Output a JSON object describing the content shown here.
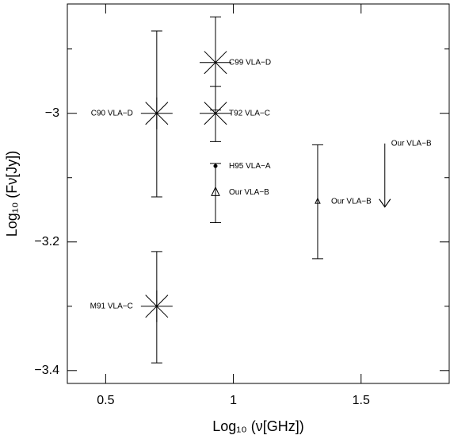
{
  "chart_data": {
    "type": "scatter",
    "xlabel": "Log₁₀ (ν[GHz])",
    "ylabel": "Log₁₀ (Fν[Jy])",
    "xlim": [
      0.35,
      1.845
    ],
    "ylim": [
      -3.42,
      -2.83
    ],
    "xticks": [
      0.5,
      1,
      1.5
    ],
    "yticks": [
      {
        "value": -3,
        "label": "−3"
      },
      {
        "value": -3.2,
        "label": "−3.2"
      },
      {
        "value": -3.4,
        "label": "−3.4"
      }
    ],
    "yminorticks": [
      -2.9,
      -3.1,
      -3.3
    ],
    "color": "#000000",
    "points": [
      {
        "label": "C90 VLA−D",
        "x": 0.7,
        "y": -3.0,
        "err_minus": 0.13,
        "err_plus": 0.128,
        "marker": "asterisk",
        "label_side": "left"
      },
      {
        "label": "M91 VLA−C",
        "x": 0.7,
        "y": -3.3,
        "err_minus": 0.088,
        "err_plus": 0.085,
        "marker": "asterisk",
        "label_side": "left"
      },
      {
        "label": "C99 VLA−D",
        "x": 0.93,
        "y": -2.921,
        "err_minus": 0.074,
        "err_plus": 0.071,
        "marker": "asterisk",
        "label_side": "right"
      },
      {
        "label": "T92 VLA−C",
        "x": 0.93,
        "y": -3.0,
        "err_minus": 0.044,
        "err_plus": 0.042,
        "marker": "asterisk",
        "label_side": "right"
      },
      {
        "label": "H95 VLA−A",
        "x": 0.93,
        "y": -3.082,
        "err_minus": 0.0,
        "err_plus": 0.0,
        "marker": "dot",
        "label_side": "right"
      },
      {
        "label": "Our VLA−B",
        "x": 0.93,
        "y": -3.123,
        "err_minus": 0.047,
        "err_plus": 0.045,
        "marker": "triangle",
        "label_side": "right"
      },
      {
        "label": "Our VLA−B",
        "x": 1.33,
        "y": -3.137,
        "err_minus": 0.089,
        "err_plus": 0.088,
        "marker": "small-triangle",
        "label_side": "right"
      },
      {
        "label": "Our VLA−B",
        "x": 1.593,
        "y": -3.047,
        "marker": "upper-limit",
        "label_side": "right"
      }
    ]
  }
}
